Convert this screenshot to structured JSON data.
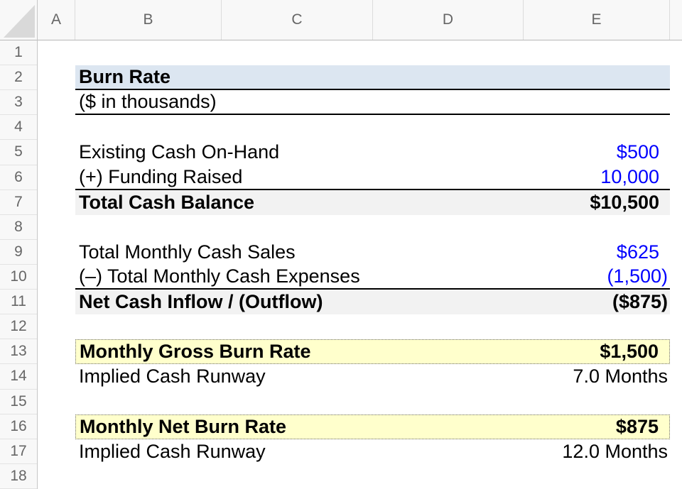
{
  "grid": {
    "columns": [
      "A",
      "B",
      "C",
      "D",
      "E"
    ],
    "row_numbers": [
      "1",
      "2",
      "3",
      "4",
      "5",
      "6",
      "7",
      "8",
      "9",
      "10",
      "11",
      "12",
      "13",
      "14",
      "15",
      "16",
      "17",
      "18"
    ]
  },
  "colors": {
    "title_fill": "#dce6f1",
    "total_fill": "#f2f2f2",
    "highlight_fill": "#ffffcc",
    "input_text": "#0000ff",
    "header_bg": "#f8f8f8",
    "header_text": "#666666"
  },
  "sheet": {
    "title": "Burn Rate",
    "subtitle": "($ in thousands)",
    "rows": [
      {
        "row": 2,
        "kind": "title",
        "label": "Burn Rate",
        "value": "",
        "value_color": "black",
        "value_format": "flush"
      },
      {
        "row": 3,
        "kind": "subtitle",
        "label": "($ in thousands)",
        "value": "",
        "value_color": "black",
        "value_format": "flush"
      },
      {
        "row": 5,
        "kind": "input",
        "label": "Existing Cash On-Hand",
        "value": "$500",
        "value_color": "blue",
        "value_format": "accounting"
      },
      {
        "row": 6,
        "kind": "input-underline",
        "label": "(+) Funding Raised",
        "value": "10,000",
        "value_color": "blue",
        "value_format": "accounting"
      },
      {
        "row": 7,
        "kind": "total",
        "label": "Total Cash Balance",
        "value": "$10,500",
        "value_color": "black",
        "value_format": "accounting"
      },
      {
        "row": 9,
        "kind": "input",
        "label": "Total Monthly Cash Sales",
        "value": "$625",
        "value_color": "blue",
        "value_format": "accounting"
      },
      {
        "row": 10,
        "kind": "input-underline",
        "label": "(–) Total Monthly Cash Expenses",
        "value": "(1,500)",
        "value_color": "blue",
        "value_format": "flush"
      },
      {
        "row": 11,
        "kind": "total",
        "label": "Net Cash Inflow / (Outflow)",
        "value": "($875)",
        "value_color": "black",
        "value_format": "flush"
      },
      {
        "row": 13,
        "kind": "highlight",
        "label": "Monthly Gross Burn Rate",
        "value": "$1,500",
        "value_color": "black",
        "value_format": "accounting"
      },
      {
        "row": 14,
        "kind": "plain",
        "label": "Implied Cash Runway",
        "value": "7.0 Months",
        "value_color": "black",
        "value_format": "flush"
      },
      {
        "row": 16,
        "kind": "highlight",
        "label": "Monthly Net Burn Rate",
        "value": "$875",
        "value_color": "black",
        "value_format": "accounting"
      },
      {
        "row": 17,
        "kind": "plain",
        "label": "Implied Cash Runway",
        "value": "12.0 Months",
        "value_color": "black",
        "value_format": "flush"
      }
    ]
  }
}
